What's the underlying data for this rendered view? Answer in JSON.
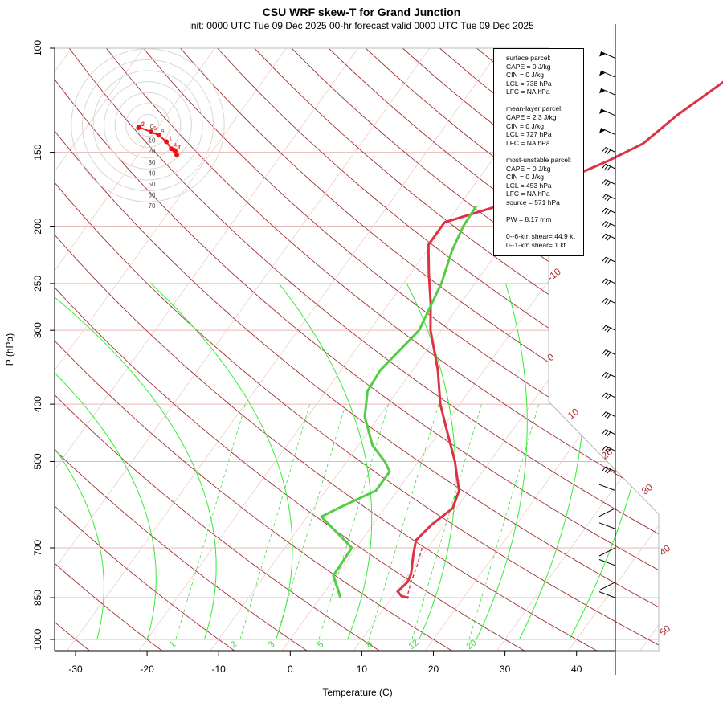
{
  "chart_data": {
    "type": "line",
    "title": "CSU WRF skew-T for Grand Junction",
    "subtitle": "init: 0000 UTC Tue 09 Dec 2025    00-hr forecast valid 0000 UTC Tue 09 Dec 2025",
    "xlabel": "Temperature (C)",
    "ylabel": "P (hPa)",
    "x_ticks": [
      -30,
      -20,
      -10,
      0,
      10,
      20,
      30,
      40
    ],
    "y_ticks": [
      100,
      150,
      200,
      250,
      300,
      400,
      500,
      700,
      850,
      1000
    ],
    "y_scale": "log-pressure, inverted",
    "isotherm_labels": [
      "-10",
      "0",
      "10",
      "20",
      "30",
      "40",
      "50"
    ],
    "mixing_ratio_labels": [
      "1",
      "2",
      "3",
      "5",
      "8",
      "12",
      "20"
    ],
    "hodograph_ring_labels": [
      "0",
      "10",
      "20",
      "30",
      "40",
      "50",
      "60",
      "70"
    ],
    "series": [
      {
        "name": "temperature",
        "color": "#dd3344",
        "points": [
          [
            103,
            7.2
          ],
          [
            110,
            5.3
          ],
          [
            120,
            3.2
          ],
          [
            130,
            1.3
          ],
          [
            145,
            -0.6
          ],
          [
            155,
            -3.7
          ],
          [
            170,
            -9
          ],
          [
            185,
            -14.6
          ],
          [
            197,
            -20.4
          ],
          [
            215,
            -20.4
          ],
          [
            240,
            -17.5
          ],
          [
            270,
            -14.2
          ],
          [
            300,
            -11.5
          ],
          [
            350,
            -6.5
          ],
          [
            400,
            -2.7
          ],
          [
            450,
            1.4
          ],
          [
            500,
            5.1
          ],
          [
            560,
            8.6
          ],
          [
            600,
            9.5
          ],
          [
            640,
            8.2
          ],
          [
            680,
            7.6
          ],
          [
            720,
            8.7
          ],
          [
            775,
            10.3
          ],
          [
            800,
            10.6
          ],
          [
            830,
            10.2
          ],
          [
            845,
            11.2
          ],
          [
            850,
            12.3
          ]
        ]
      },
      {
        "name": "dewpoint",
        "color": "#55cc44",
        "points": [
          [
            185,
            -17.6
          ],
          [
            200,
            -17.4
          ],
          [
            220,
            -16.5
          ],
          [
            250,
            -14.7
          ],
          [
            280,
            -13.7
          ],
          [
            300,
            -13.1
          ],
          [
            350,
            -14.5
          ],
          [
            380,
            -14.2
          ],
          [
            420,
            -12
          ],
          [
            470,
            -8
          ],
          [
            500,
            -4.7
          ],
          [
            520,
            -3
          ],
          [
            560,
            -3
          ],
          [
            600,
            -6.5
          ],
          [
            620,
            -8
          ],
          [
            700,
            -0.6
          ],
          [
            740,
            -0.5
          ],
          [
            780,
            -0.4
          ],
          [
            820,
            1.5
          ],
          [
            845,
            2.6
          ],
          [
            850,
            2.8
          ]
        ]
      },
      {
        "name": "parcel",
        "color": "#dd3344",
        "points": [
          [
            700,
            9.2
          ],
          [
            750,
            10.3
          ],
          [
            800,
            11.1
          ],
          [
            840,
            11.9
          ],
          [
            850,
            12.3
          ]
        ]
      }
    ],
    "hodograph": {
      "labels": [
        "0",
        "2",
        "5",
        "9",
        "1",
        "4",
        "7",
        "8"
      ],
      "points": [
        [
          -1.7,
          -0.45
        ],
        [
          -1.6,
          -0.35
        ],
        [
          0.6,
          -1.2
        ],
        [
          2.0,
          -1.8
        ],
        [
          3.4,
          -3.0
        ],
        [
          4.3,
          -4.3
        ],
        [
          5.0,
          -4.7
        ],
        [
          4.9,
          -4.6
        ],
        [
          5.3,
          -5.4
        ]
      ]
    },
    "wind_barb_pressures": [
      104,
      112,
      120,
      130,
      140,
      150,
      160,
      170,
      180,
      190,
      200,
      210,
      230,
      250,
      270,
      300,
      330,
      360,
      390,
      420,
      450,
      480,
      520,
      560,
      600,
      650,
      700,
      750,
      800,
      850
    ]
  },
  "legend": {
    "groups": [
      [
        "surface parcel:",
        "CAPE = 0 J/kg",
        "CIN = 0 J/kg",
        "LCL = 738 hPa",
        "LFC = NA hPa"
      ],
      [
        "mean-layer parcel:",
        "CAPE = 2.3 J/kg",
        "CIN = 0 J/kg",
        "LCL = 727 hPa",
        "LFC = NA hPa"
      ],
      [
        "most-unstable parcel:",
        "CAPE = 0 J/kg",
        "CIN = 0 J/kg",
        "LCL = 453 hPa",
        "LFC = NA hPa",
        "source = 571 hPa"
      ],
      [
        "PW =  8.17 mm"
      ],
      [
        "0--6-km shear= 44.9 kt",
        "0--1-km shear= 1 kt"
      ]
    ]
  }
}
